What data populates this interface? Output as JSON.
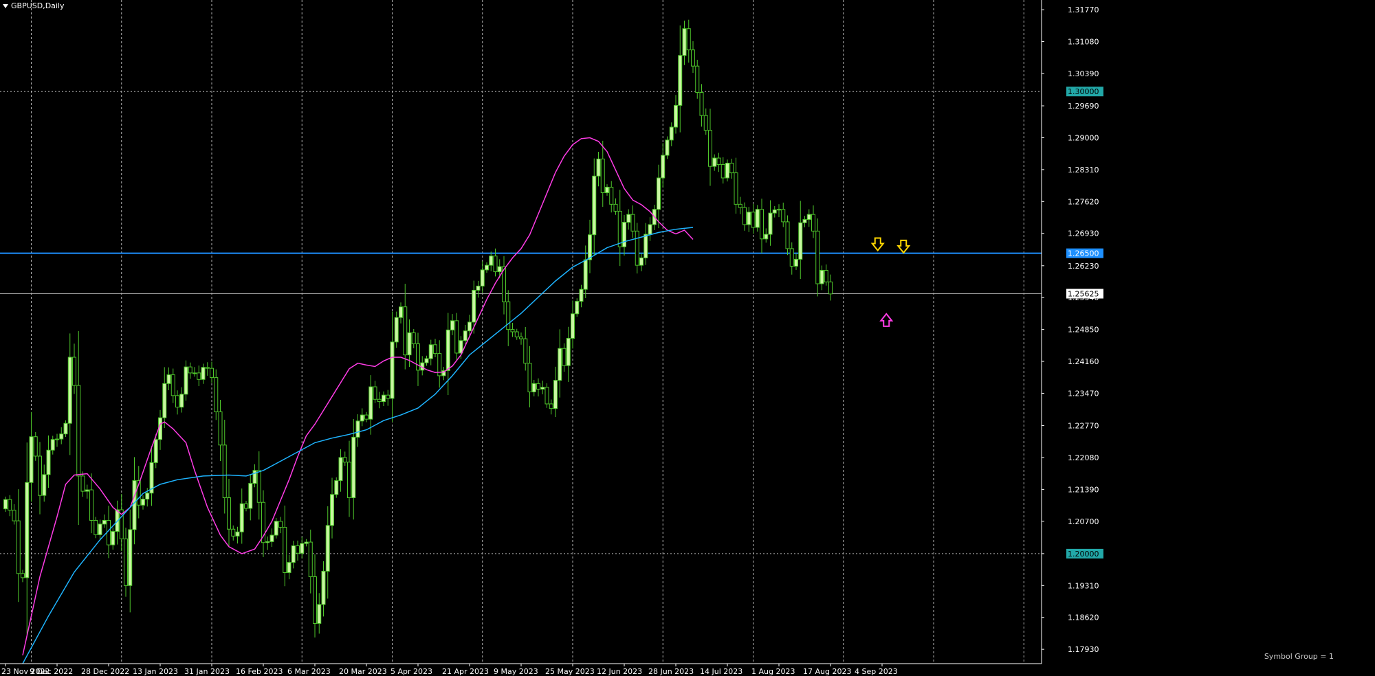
{
  "window": {
    "symbol_title": "GBPUSD,Daily"
  },
  "footer": {
    "note": "Symbol Group = 1"
  },
  "colors": {
    "background": "#000000",
    "bull_candle": "#c8f7a0",
    "bear_candle": "#000000",
    "candle_outline": "#4ec62a",
    "ma_fast": "#ff3ce6",
    "ma_slow": "#1eb4ff",
    "grid": "#b4b4b4",
    "hline_support": "#1e90ff",
    "hline_price": "#aaaaaa",
    "level_label_bg": "#22a8a8",
    "price_label_bg": "#ffffff",
    "arrow_down": "#ffd700",
    "arrow_up": "#ff3ce6"
  },
  "chart_data": {
    "type": "candlestick",
    "symbol": "GBPUSD",
    "timeframe": "Daily",
    "ylim": [
      1.1762,
      1.3198
    ],
    "y_ticks": [
      1.3177,
      1.3108,
      1.3039,
      1.2969,
      1.29,
      1.2831,
      1.2762,
      1.2693,
      1.2623,
      1.2554,
      1.2485,
      1.2416,
      1.2347,
      1.2277,
      1.2208,
      1.2139,
      1.207,
      1.2,
      1.1931,
      1.1862,
      1.1793
    ],
    "x_labels": [
      {
        "label": "23 Nov 2022",
        "bar": 0
      },
      {
        "label": "9 Dec 2022",
        "bar": 12
      },
      {
        "label": "28 Dec 2022",
        "bar": 24
      },
      {
        "label": "13 Jan 2023",
        "bar": 36
      },
      {
        "label": "31 Jan 2023",
        "bar": 48
      },
      {
        "label": "16 Feb 2023",
        "bar": 60
      },
      {
        "label": "6 Mar 2023",
        "bar": 72
      },
      {
        "label": "20 Mar 2023",
        "bar": 84
      },
      {
        "label": "5 Apr 2023",
        "bar": 96
      },
      {
        "label": "21 Apr 2023",
        "bar": 108
      },
      {
        "label": "9 May 2023",
        "bar": 120
      },
      {
        "label": "25 May 2023",
        "bar": 132
      },
      {
        "label": "12 Jun 2023",
        "bar": 144
      },
      {
        "label": "28 Jun 2023",
        "bar": 156
      },
      {
        "label": "14 Jul 2023",
        "bar": 168
      },
      {
        "label": "1 Aug 2023",
        "bar": 180
      },
      {
        "label": "17 Aug 2023",
        "bar": 192
      },
      {
        "label": "4 Sep 2023",
        "bar": 204
      }
    ],
    "vgrid_bars": [
      6,
      27,
      48,
      69,
      90,
      111,
      132,
      153,
      174,
      195,
      216,
      237
    ],
    "hgrid_levels": [
      1.3,
      1.2
    ],
    "levels": [
      {
        "price": 1.3,
        "label": "1.30000",
        "style": "level"
      },
      {
        "price": 1.265,
        "label": "1.26500",
        "style": "support"
      },
      {
        "price": 1.25625,
        "label": "1.25625",
        "style": "price"
      },
      {
        "price": 1.2,
        "label": "1.20000",
        "style": "level"
      }
    ],
    "close": [
      1.2117,
      1.2094,
      1.2071,
      1.1957,
      1.1948,
      1.2154,
      1.2253,
      1.2211,
      1.2126,
      1.2171,
      1.2224,
      1.2247,
      1.2248,
      1.2259,
      1.2282,
      1.2425,
      1.2364,
      1.2168,
      1.2135,
      1.2138,
      1.2072,
      1.2041,
      1.2064,
      1.2072,
      1.2019,
      1.2048,
      1.2095,
      1.2032,
      1.1931,
      1.2052,
      1.2158,
      1.2105,
      1.2118,
      1.2131,
      1.2197,
      1.2247,
      1.2294,
      1.2368,
      1.2387,
      1.2342,
      1.2317,
      1.2345,
      1.2404,
      1.2391,
      1.2391,
      1.2377,
      1.2403,
      1.2401,
      1.2381,
      1.2307,
      1.2235,
      1.2121,
      1.2053,
      1.2038,
      1.2047,
      1.2108,
      1.2098,
      1.2152,
      1.218,
      1.2111,
      1.2024,
      1.2026,
      1.204,
      1.207,
      1.2057,
      1.1959,
      1.1981,
      1.2017,
      1.2001,
      1.2022,
      1.2025,
      1.195,
      1.1849,
      1.189,
      1.1962,
      1.2061,
      1.2128,
      1.2158,
      1.2208,
      1.2198,
      1.2121,
      1.2252,
      1.2287,
      1.23,
      1.2291,
      1.2361,
      1.2334,
      1.2329,
      1.2343,
      1.2336,
      1.2458,
      1.2511,
      1.2534,
      1.243,
      1.2478,
      1.2454,
      1.2397,
      1.2413,
      1.2422,
      1.2452,
      1.2433,
      1.2385,
      1.2396,
      1.2484,
      1.2504,
      1.2434,
      1.2461,
      1.2482,
      1.2501,
      1.257,
      1.2579,
      1.2614,
      1.2624,
      1.2644,
      1.261,
      1.2621,
      1.2545,
      1.2485,
      1.248,
      1.2469,
      1.2465,
      1.2412,
      1.235,
      1.2368,
      1.2356,
      1.236,
      1.2324,
      1.2314,
      1.2375,
      1.2444,
      1.2407,
      1.2466,
      1.2519,
      1.2546,
      1.2572,
      1.2636,
      1.269,
      1.2817,
      1.2854,
      1.2781,
      1.2793,
      1.2756,
      1.2741,
      1.2664,
      1.2717,
      1.2734,
      1.2698,
      1.2624,
      1.264,
      1.2691,
      1.2712,
      1.2745,
      1.2813,
      1.2862,
      1.2895,
      1.2923,
      1.297,
      1.3078,
      1.3136,
      1.309,
      1.3055,
      1.2998,
      1.2948,
      1.2916,
      1.2838,
      1.2856,
      1.2842,
      1.2813,
      1.2845,
      1.2824,
      1.2756,
      1.2749,
      1.2712,
      1.2739,
      1.2706,
      1.2745,
      1.2681,
      1.2691,
      1.2737,
      1.2744,
      1.2745,
      1.2718,
      1.266,
      1.2622,
      1.2637,
      1.2716,
      1.2723,
      1.2734,
      1.2698,
      1.2584,
      1.2613,
      1.2588,
      1.2562
    ],
    "series": [
      {
        "name": "",
        "type": "line",
        "color_key": "ma_fast",
        "points": [
          [
            4,
            1.178
          ],
          [
            8,
            1.195
          ],
          [
            12,
            1.208
          ],
          [
            14,
            1.215
          ],
          [
            16,
            1.217
          ],
          [
            19,
            1.2173
          ],
          [
            22,
            1.214
          ],
          [
            25,
            1.21
          ],
          [
            27,
            1.2085
          ],
          [
            29,
            1.21
          ],
          [
            31,
            1.215
          ],
          [
            34,
            1.223
          ],
          [
            36,
            1.228
          ],
          [
            37,
            1.2285
          ],
          [
            39,
            1.227
          ],
          [
            42,
            1.224
          ],
          [
            44,
            1.218
          ],
          [
            47,
            1.21
          ],
          [
            50,
            1.204
          ],
          [
            52,
            1.2015
          ],
          [
            55,
            1.2
          ],
          [
            58,
            1.201
          ],
          [
            60,
            1.2038
          ],
          [
            62,
            1.207
          ],
          [
            64,
            1.2115
          ],
          [
            66,
            1.216
          ],
          [
            68,
            1.221
          ],
          [
            70,
            1.2255
          ],
          [
            72,
            1.228
          ],
          [
            74,
            1.231
          ],
          [
            76,
            1.234
          ],
          [
            78,
            1.237
          ],
          [
            80,
            1.24
          ],
          [
            82,
            1.2412
          ],
          [
            84,
            1.2408
          ],
          [
            86,
            1.2405
          ],
          [
            88,
            1.2417
          ],
          [
            90,
            1.2425
          ],
          [
            92,
            1.2425
          ],
          [
            94,
            1.2418
          ],
          [
            96,
            1.2408
          ],
          [
            98,
            1.2398
          ],
          [
            100,
            1.2392
          ],
          [
            102,
            1.2393
          ],
          [
            104,
            1.2406
          ],
          [
            106,
            1.243
          ],
          [
            108,
            1.247
          ],
          [
            110,
            1.251
          ],
          [
            112,
            1.255
          ],
          [
            114,
            1.2585
          ],
          [
            116,
            1.2615
          ],
          [
            118,
            1.264
          ],
          [
            120,
            1.266
          ],
          [
            122,
            1.269
          ],
          [
            124,
            1.2735
          ],
          [
            126,
            1.278
          ],
          [
            128,
            1.2825
          ],
          [
            130,
            1.286
          ],
          [
            132,
            1.2885
          ],
          [
            134,
            1.2898
          ],
          [
            136,
            1.29
          ],
          [
            138,
            1.2892
          ],
          [
            140,
            1.287
          ],
          [
            142,
            1.283
          ],
          [
            144,
            1.279
          ],
          [
            146,
            1.2765
          ],
          [
            148,
            1.2755
          ],
          [
            150,
            1.274
          ],
          [
            152,
            1.2718
          ],
          [
            154,
            1.27
          ],
          [
            156,
            1.2692
          ],
          [
            158,
            1.27
          ],
          [
            160,
            1.268
          ]
        ]
      },
      {
        "name": "",
        "type": "line",
        "color_key": "ma_slow",
        "points": [
          [
            4,
            1.1762
          ],
          [
            10,
            1.1865
          ],
          [
            16,
            1.196
          ],
          [
            22,
            1.203
          ],
          [
            28,
            1.209
          ],
          [
            32,
            1.213
          ],
          [
            36,
            1.215
          ],
          [
            40,
            1.216
          ],
          [
            46,
            1.2168
          ],
          [
            52,
            1.217
          ],
          [
            56,
            1.2168
          ],
          [
            60,
            1.218
          ],
          [
            64,
            1.22
          ],
          [
            68,
            1.222
          ],
          [
            72,
            1.224
          ],
          [
            76,
            1.225
          ],
          [
            80,
            1.2258
          ],
          [
            84,
            1.2268
          ],
          [
            88,
            1.2288
          ],
          [
            92,
            1.23
          ],
          [
            96,
            1.2315
          ],
          [
            100,
            1.2345
          ],
          [
            104,
            1.2385
          ],
          [
            108,
            1.243
          ],
          [
            112,
            1.246
          ],
          [
            116,
            1.249
          ],
          [
            120,
            1.252
          ],
          [
            124,
            1.2555
          ],
          [
            128,
            1.259
          ],
          [
            132,
            1.262
          ],
          [
            136,
            1.264
          ],
          [
            140,
            1.2662
          ],
          [
            144,
            1.2675
          ],
          [
            148,
            1.2685
          ],
          [
            152,
            1.2695
          ],
          [
            156,
            1.2702
          ],
          [
            160,
            1.2706
          ]
        ]
      }
    ],
    "markers": [
      {
        "type": "arrow-down",
        "bar": 203,
        "price": 1.2665,
        "color_key": "arrow_down"
      },
      {
        "type": "arrow-down",
        "bar": 209,
        "price": 1.266,
        "color_key": "arrow_down"
      },
      {
        "type": "arrow-up",
        "bar": 205,
        "price": 1.251,
        "color_key": "arrow_up"
      }
    ]
  }
}
